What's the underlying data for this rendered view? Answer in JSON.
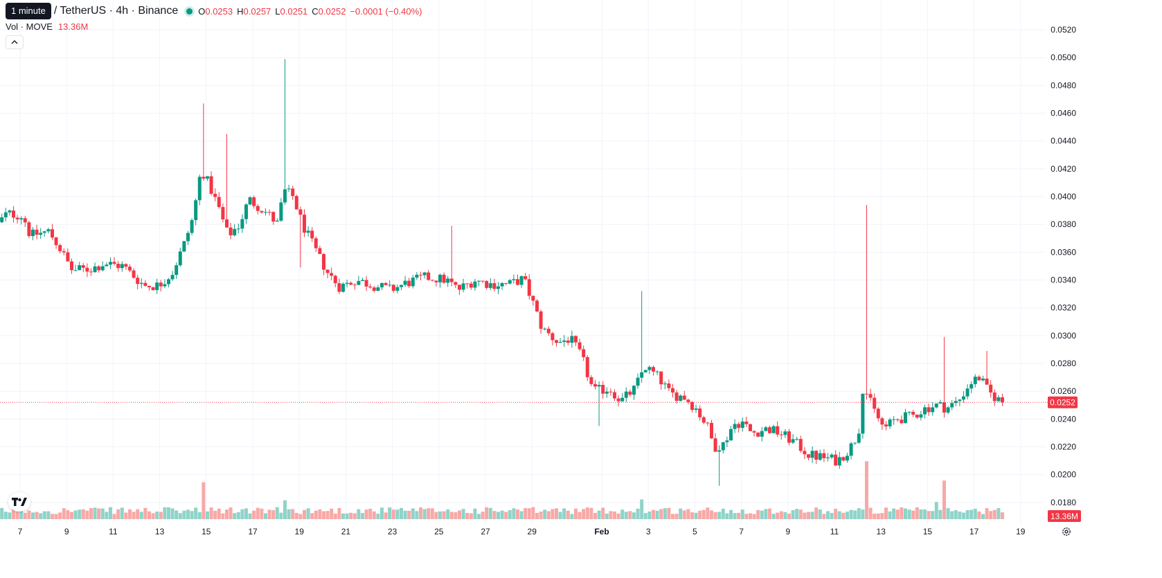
{
  "header": {
    "tooltip": "1 minute",
    "symbol": "/ TetherUS · 4h · Binance",
    "open_label": "O",
    "open": "0.0253",
    "high_label": "H",
    "high": "0.0257",
    "low_label": "L",
    "low": "0.0251",
    "close_label": "C",
    "close": "0.0252",
    "change": "−0.0001 (−0.40%)"
  },
  "volume": {
    "label": "Vol · MOVE",
    "value": "13.36M"
  },
  "icons": {
    "collapse": "chevron-up-icon",
    "logo": "tradingview-logo-icon",
    "settings": "gear-icon"
  },
  "colors": {
    "up": "#089981",
    "down": "#f23645",
    "up_volume": "#8fd3c9",
    "down_volume": "#f7a9a7",
    "grid": "#f0f3fa"
  },
  "chart_data": {
    "type": "candlestick",
    "y_axis": {
      "range": [
        0.0165,
        0.0525
      ],
      "ticks": [
        "0.0520",
        "0.0500",
        "0.0480",
        "0.0460",
        "0.0440",
        "0.0420",
        "0.0400",
        "0.0380",
        "0.0360",
        "0.0340",
        "0.0320",
        "0.0300",
        "0.0280",
        "0.0260",
        "0.0240",
        "0.0220",
        "0.0200",
        "0.0180"
      ]
    },
    "x_axis": {
      "ticks": [
        {
          "label": "7",
          "day": 7
        },
        {
          "label": "9",
          "day": 9
        },
        {
          "label": "11",
          "day": 11
        },
        {
          "label": "13",
          "day": 13
        },
        {
          "label": "15",
          "day": 15
        },
        {
          "label": "17",
          "day": 17
        },
        {
          "label": "19",
          "day": 19
        },
        {
          "label": "21",
          "day": 21
        },
        {
          "label": "23",
          "day": 23
        },
        {
          "label": "25",
          "day": 25
        },
        {
          "label": "27",
          "day": 27
        },
        {
          "label": "29",
          "day": 29
        },
        {
          "label": "Feb",
          "day": 32
        },
        {
          "label": "3",
          "day": 34
        },
        {
          "label": "5",
          "day": 36
        },
        {
          "label": "7",
          "day": 38
        },
        {
          "label": "9",
          "day": 40
        },
        {
          "label": "11",
          "day": 42
        },
        {
          "label": "13",
          "day": 44
        },
        {
          "label": "15",
          "day": 46
        },
        {
          "label": "17",
          "day": 48
        },
        {
          "label": "19",
          "day": 50
        }
      ]
    },
    "last_price": "0.0252",
    "last_volume": "13.36M",
    "grid": true,
    "keypoints": [
      [
        6.1,
        0.0378
      ],
      [
        6.6,
        0.0388
      ],
      [
        7.3,
        0.0386
      ],
      [
        7.6,
        0.0372
      ],
      [
        8.4,
        0.0375
      ],
      [
        8.8,
        0.0365
      ],
      [
        9.4,
        0.0347
      ],
      [
        10.2,
        0.0348
      ],
      [
        10.8,
        0.0352
      ],
      [
        11.6,
        0.035
      ],
      [
        12.1,
        0.0342
      ],
      [
        12.5,
        0.0336
      ],
      [
        13.1,
        0.0336
      ],
      [
        13.7,
        0.0345
      ],
      [
        14.2,
        0.0365
      ],
      [
        14.6,
        0.0385
      ],
      [
        14.95,
        0.042
      ],
      [
        15.3,
        0.0408
      ],
      [
        15.7,
        0.0392
      ],
      [
        16.1,
        0.0372
      ],
      [
        16.6,
        0.038
      ],
      [
        17.0,
        0.0398
      ],
      [
        17.8,
        0.0388
      ],
      [
        18.3,
        0.0379
      ],
      [
        18.45,
        0.0405
      ],
      [
        18.9,
        0.04
      ],
      [
        19.3,
        0.038
      ],
      [
        19.9,
        0.036
      ],
      [
        20.4,
        0.0345
      ],
      [
        20.9,
        0.0335
      ],
      [
        21.6,
        0.034
      ],
      [
        22.4,
        0.0336
      ],
      [
        23.1,
        0.0333
      ],
      [
        23.8,
        0.0338
      ],
      [
        24.6,
        0.0342
      ],
      [
        25.5,
        0.034
      ],
      [
        26.0,
        0.0333
      ],
      [
        26.7,
        0.034
      ],
      [
        27.4,
        0.0337
      ],
      [
        28.2,
        0.0337
      ],
      [
        28.8,
        0.0341
      ],
      [
        29.2,
        0.0324
      ],
      [
        29.6,
        0.0305
      ],
      [
        30.3,
        0.0295
      ],
      [
        30.8,
        0.0298
      ],
      [
        31.3,
        0.0285
      ],
      [
        31.8,
        0.026
      ],
      [
        32.5,
        0.0262
      ],
      [
        33.0,
        0.0253
      ],
      [
        33.6,
        0.0262
      ],
      [
        34.0,
        0.0278
      ],
      [
        34.6,
        0.027
      ],
      [
        35.1,
        0.0258
      ],
      [
        35.7,
        0.0256
      ],
      [
        36.2,
        0.0248
      ],
      [
        36.7,
        0.0235
      ],
      [
        37.0,
        0.022
      ],
      [
        37.4,
        0.0222
      ],
      [
        37.8,
        0.0236
      ],
      [
        38.2,
        0.0238
      ],
      [
        38.6,
        0.023
      ],
      [
        39.3,
        0.0233
      ],
      [
        39.8,
        0.023
      ],
      [
        40.4,
        0.0224
      ],
      [
        41.1,
        0.0214
      ],
      [
        41.8,
        0.0212
      ],
      [
        42.3,
        0.021
      ],
      [
        42.8,
        0.0218
      ],
      [
        43.2,
        0.023
      ],
      [
        43.4,
        0.0265
      ],
      [
        43.8,
        0.0248
      ],
      [
        44.3,
        0.0233
      ],
      [
        44.8,
        0.024
      ],
      [
        45.5,
        0.0242
      ],
      [
        46.1,
        0.0248
      ],
      [
        46.6,
        0.025
      ],
      [
        47.0,
        0.0248
      ],
      [
        47.5,
        0.0253
      ],
      [
        48.0,
        0.0266
      ],
      [
        48.4,
        0.027
      ],
      [
        48.8,
        0.0259
      ],
      [
        49.3,
        0.0253
      ]
    ],
    "spikes": [
      {
        "day": 14.95,
        "high": 0.0467
      },
      {
        "day": 15.8,
        "high": 0.0445
      },
      {
        "day": 18.45,
        "high": 0.0499
      },
      {
        "day": 19.1,
        "low": 0.0349
      },
      {
        "day": 25.6,
        "high": 0.0379
      },
      {
        "day": 31.85,
        "low": 0.0235
      },
      {
        "day": 33.7,
        "high": 0.0332
      },
      {
        "day": 37.05,
        "low": 0.0192
      },
      {
        "day": 43.4,
        "high": 0.0394
      },
      {
        "day": 46.75,
        "high": 0.0299
      },
      {
        "day": 48.55,
        "high": 0.0289
      }
    ],
    "volume_spikes": [
      {
        "day": 14.95,
        "value": 8.6
      },
      {
        "day": 18.45,
        "value": 4.4
      },
      {
        "day": 33.7,
        "value": 4.6
      },
      {
        "day": 43.4,
        "value": 13.5
      },
      {
        "day": 46.4,
        "value": 4.0
      },
      {
        "day": 46.75,
        "value": 9.0
      }
    ]
  }
}
